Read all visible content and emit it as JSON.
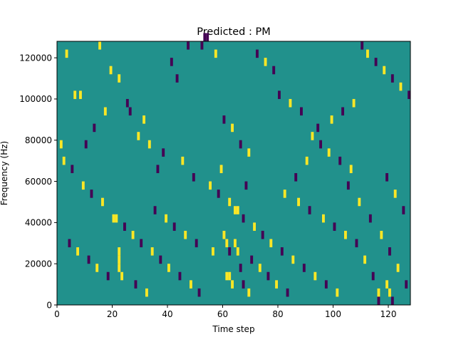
{
  "chart_data": {
    "type": "heatmap",
    "title": "Predicted : PM",
    "xlabel": "Time step",
    "ylabel": "Frequency (Hz)",
    "xlim": [
      0,
      128
    ],
    "ylim": [
      0,
      128000
    ],
    "xticks": [
      0,
      20,
      40,
      60,
      80,
      100,
      120
    ],
    "yticks": [
      0,
      20000,
      40000,
      60000,
      80000,
      100000,
      120000
    ],
    "xtick_labels": [
      "0",
      "20",
      "40",
      "60",
      "80",
      "100",
      "120"
    ],
    "ytick_labels": [
      "0",
      "20000",
      "40000",
      "60000",
      "80000",
      "100000",
      "120000"
    ],
    "grid": false,
    "legend": "none",
    "colormap": "viridis",
    "levels": [
      -1,
      0,
      1
    ],
    "level_colors": {
      "-1": "#440154",
      "0": "#21918c",
      "1": "#fde725"
    },
    "background_level": 0,
    "bin_width": 1,
    "bin_height": 4000,
    "cells": [
      [
        3,
        120000,
        1
      ],
      [
        6,
        100000,
        1
      ],
      [
        8,
        100000,
        1
      ],
      [
        10,
        76000,
        -1
      ],
      [
        15,
        124000,
        1
      ],
      [
        19,
        112000,
        1
      ],
      [
        22,
        108000,
        1
      ],
      [
        26,
        92000,
        -1
      ],
      [
        31,
        88000,
        1
      ],
      [
        33,
        76000,
        1
      ],
      [
        36,
        64000,
        -1
      ],
      [
        41,
        116000,
        -1
      ],
      [
        43,
        108000,
        -1
      ],
      [
        47,
        124000,
        -1
      ],
      [
        52,
        124000,
        -1
      ],
      [
        53,
        128000,
        -1
      ],
      [
        54,
        128000,
        -1
      ],
      [
        57,
        120000,
        1
      ],
      [
        60,
        88000,
        -1
      ],
      [
        63,
        84000,
        1
      ],
      [
        66,
        76000,
        -1
      ],
      [
        69,
        72000,
        1
      ],
      [
        72,
        120000,
        -1
      ],
      [
        75,
        116000,
        1
      ],
      [
        78,
        112000,
        -1
      ],
      [
        80,
        100000,
        -1
      ],
      [
        84,
        96000,
        1
      ],
      [
        88,
        92000,
        -1
      ],
      [
        92,
        80000,
        1
      ],
      [
        95,
        76000,
        -1
      ],
      [
        98,
        72000,
        1
      ],
      [
        102,
        68000,
        -1
      ],
      [
        106,
        64000,
        1
      ],
      [
        110,
        124000,
        -1
      ],
      [
        112,
        120000,
        1
      ],
      [
        115,
        116000,
        -1
      ],
      [
        118,
        112000,
        1
      ],
      [
        121,
        108000,
        -1
      ],
      [
        124,
        104000,
        1
      ],
      [
        127,
        100000,
        -1
      ],
      [
        2,
        68000,
        1
      ],
      [
        5,
        64000,
        -1
      ],
      [
        9,
        56000,
        1
      ],
      [
        12,
        52000,
        -1
      ],
      [
        16,
        48000,
        1
      ],
      [
        20,
        40000,
        1
      ],
      [
        21,
        40000,
        1
      ],
      [
        24,
        36000,
        -1
      ],
      [
        27,
        32000,
        1
      ],
      [
        30,
        28000,
        -1
      ],
      [
        34,
        24000,
        1
      ],
      [
        37,
        20000,
        -1
      ],
      [
        40,
        16000,
        1
      ],
      [
        44,
        12000,
        -1
      ],
      [
        48,
        8000,
        1
      ],
      [
        51,
        4000,
        -1
      ],
      [
        55,
        56000,
        1
      ],
      [
        58,
        52000,
        -1
      ],
      [
        62,
        48000,
        1
      ],
      [
        64,
        44000,
        1
      ],
      [
        65,
        44000,
        1
      ],
      [
        67,
        40000,
        -1
      ],
      [
        71,
        36000,
        1
      ],
      [
        74,
        32000,
        -1
      ],
      [
        77,
        28000,
        1
      ],
      [
        81,
        24000,
        -1
      ],
      [
        85,
        20000,
        1
      ],
      [
        89,
        16000,
        -1
      ],
      [
        93,
        12000,
        1
      ],
      [
        97,
        8000,
        -1
      ],
      [
        101,
        4000,
        1
      ],
      [
        105,
        56000,
        -1
      ],
      [
        109,
        48000,
        1
      ],
      [
        113,
        40000,
        -1
      ],
      [
        117,
        32000,
        1
      ],
      [
        120,
        24000,
        -1
      ],
      [
        123,
        16000,
        1
      ],
      [
        126,
        8000,
        -1
      ],
      [
        4,
        28000,
        -1
      ],
      [
        7,
        24000,
        1
      ],
      [
        11,
        20000,
        -1
      ],
      [
        14,
        16000,
        1
      ],
      [
        18,
        12000,
        -1
      ],
      [
        22,
        24000,
        1
      ],
      [
        22,
        20000,
        1
      ],
      [
        22,
        16000,
        1
      ],
      [
        23,
        12000,
        1
      ],
      [
        28,
        8000,
        -1
      ],
      [
        32,
        4000,
        1
      ],
      [
        35,
        44000,
        -1
      ],
      [
        39,
        40000,
        1
      ],
      [
        42,
        36000,
        -1
      ],
      [
        46,
        32000,
        1
      ],
      [
        50,
        28000,
        -1
      ],
      [
        56,
        24000,
        1
      ],
      [
        61,
        12000,
        1
      ],
      [
        62,
        12000,
        1
      ],
      [
        63,
        8000,
        1
      ],
      [
        64,
        28000,
        1
      ],
      [
        65,
        24000,
        1
      ],
      [
        70,
        20000,
        -1
      ],
      [
        73,
        16000,
        1
      ],
      [
        76,
        12000,
        -1
      ],
      [
        79,
        8000,
        1
      ],
      [
        83,
        4000,
        -1
      ],
      [
        87,
        48000,
        1
      ],
      [
        91,
        44000,
        -1
      ],
      [
        96,
        40000,
        1
      ],
      [
        100,
        36000,
        -1
      ],
      [
        104,
        32000,
        1
      ],
      [
        108,
        28000,
        -1
      ],
      [
        111,
        20000,
        1
      ],
      [
        114,
        12000,
        -1
      ],
      [
        116,
        4000,
        1
      ],
      [
        119,
        60000,
        -1
      ],
      [
        122,
        52000,
        1
      ],
      [
        125,
        44000,
        -1
      ],
      [
        1,
        76000,
        1
      ],
      [
        13,
        84000,
        -1
      ],
      [
        17,
        92000,
        1
      ],
      [
        25,
        96000,
        -1
      ],
      [
        29,
        80000,
        1
      ],
      [
        38,
        72000,
        -1
      ],
      [
        45,
        68000,
        1
      ],
      [
        49,
        60000,
        -1
      ],
      [
        59,
        64000,
        1
      ],
      [
        68,
        56000,
        -1
      ],
      [
        82,
        52000,
        1
      ],
      [
        86,
        60000,
        -1
      ],
      [
        90,
        68000,
        1
      ],
      [
        94,
        84000,
        -1
      ],
      [
        99,
        88000,
        1
      ],
      [
        103,
        92000,
        -1
      ],
      [
        107,
        96000,
        1
      ],
      [
        60,
        32000,
        1
      ],
      [
        61,
        28000,
        1
      ],
      [
        62,
        24000,
        -1
      ],
      [
        66,
        16000,
        -1
      ],
      [
        67,
        8000,
        -1
      ],
      [
        69,
        4000,
        1
      ],
      [
        119,
        8000,
        1
      ],
      [
        120,
        4000,
        1
      ],
      [
        121,
        0,
        -1
      ],
      [
        116,
        0,
        -1
      ]
    ]
  }
}
